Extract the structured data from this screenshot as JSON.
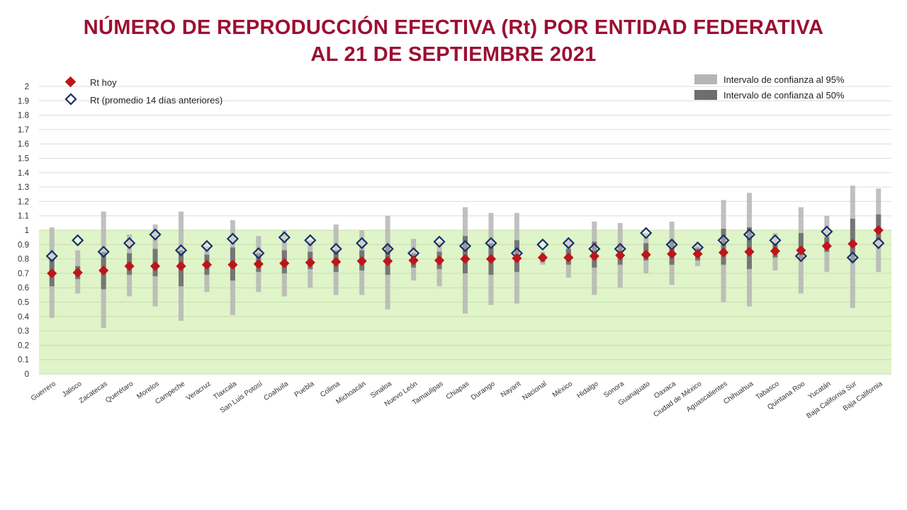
{
  "title": {
    "line1": "NÚMERO DE REPRODUCCIÓN EFECTIVA (Rt) POR ENTIDAD FEDERATIVA",
    "line2": "AL 21 DE SEPTIEMBRE 2021"
  },
  "legend": {
    "rt_today": "Rt hoy",
    "rt_avg": "Rt (promedio 14 días anteriores)",
    "ci95": "Intervalo de confianza al 95%",
    "ci50": "Intervalo de confianza al 50%"
  },
  "colors": {
    "title": "#9b1032",
    "rt_today": "#c0141b",
    "rt_avg_border": "#1a2f6b",
    "rt_avg_fill": "#ffffff",
    "ci95": "#b5b5b5",
    "ci50": "#6e6e6e",
    "band": "#dff4c8"
  },
  "chart_data": {
    "type": "scatter",
    "ylim": [
      0,
      2
    ],
    "yticks": [
      "0",
      "0.1",
      "0.2",
      "0.3",
      "0.4",
      "0.5",
      "0.6",
      "0.7",
      "0.8",
      "0.9",
      "1",
      "1.1",
      "1.2",
      "1.3",
      "1.4",
      "1.5",
      "1.6",
      "1.7",
      "1.8",
      "1.9",
      "2"
    ],
    "shaded_region": [
      0,
      1
    ],
    "grid": true,
    "legend_position": "top-left and top-right",
    "categories": [
      "Guerrero",
      "Jalisco",
      "Zacatecas",
      "Querétaro",
      "Morelos",
      "Campeche",
      "Veracruz",
      "Tlaxcala",
      "San Luis Potosí",
      "Coahuila",
      "Puebla",
      "Colima",
      "Michoacán",
      "Sinaloa",
      "Nuevo León",
      "Tamaulipas",
      "Chiapas",
      "Durango",
      "Nayarit",
      "Nacional",
      "México",
      "Hidalgo",
      "Sonora",
      "Guanajuato",
      "Oaxaca",
      "Ciudad de México",
      "Aguascalientes",
      "Chihuahua",
      "Tabasco",
      "Quintana Roo",
      "Yucatán",
      "Baja California Sur",
      "Baja California"
    ],
    "series": [
      {
        "name": "Rt hoy",
        "values": [
          0.7,
          0.705,
          0.72,
          0.75,
          0.75,
          0.75,
          0.76,
          0.76,
          0.765,
          0.77,
          0.775,
          0.78,
          0.785,
          0.785,
          0.79,
          0.79,
          0.8,
          0.8,
          0.805,
          0.81,
          0.81,
          0.82,
          0.825,
          0.83,
          0.835,
          0.835,
          0.845,
          0.85,
          0.855,
          0.86,
          0.89,
          0.905,
          1.0
        ]
      },
      {
        "name": "Rt (promedio 14 días anteriores)",
        "values": [
          0.82,
          0.93,
          0.85,
          0.91,
          0.97,
          0.86,
          0.89,
          0.94,
          0.84,
          0.95,
          0.93,
          0.87,
          0.91,
          0.87,
          0.84,
          0.92,
          0.89,
          0.91,
          0.84,
          0.9,
          0.91,
          0.87,
          0.87,
          0.98,
          0.9,
          0.88,
          0.93,
          0.97,
          0.93,
          0.82,
          0.99,
          0.81,
          0.91
        ]
      },
      {
        "name": "Intervalo de confianza al 95%",
        "ranges": [
          [
            0.39,
            1.02
          ],
          [
            0.56,
            0.86
          ],
          [
            0.32,
            1.13
          ],
          [
            0.54,
            0.97
          ],
          [
            0.47,
            1.04
          ],
          [
            0.37,
            1.13
          ],
          [
            0.57,
            0.89
          ],
          [
            0.41,
            1.07
          ],
          [
            0.57,
            0.96
          ],
          [
            0.54,
            1.0
          ],
          [
            0.6,
            0.93
          ],
          [
            0.55,
            1.04
          ],
          [
            0.55,
            1.0
          ],
          [
            0.45,
            1.1
          ],
          [
            0.65,
            0.94
          ],
          [
            0.61,
            0.92
          ],
          [
            0.42,
            1.16
          ],
          [
            0.48,
            1.12
          ],
          [
            0.49,
            1.12
          ],
          [
            0.76,
            0.85
          ],
          [
            0.67,
            0.93
          ],
          [
            0.55,
            1.06
          ],
          [
            0.6,
            1.05
          ],
          [
            0.7,
            0.98
          ],
          [
            0.62,
            1.06
          ],
          [
            0.75,
            0.9
          ],
          [
            0.5,
            1.21
          ],
          [
            0.47,
            1.26
          ],
          [
            0.72,
            0.98
          ],
          [
            0.56,
            1.16
          ],
          [
            0.71,
            1.1
          ],
          [
            0.46,
            1.31
          ],
          [
            0.71,
            1.29
          ]
        ]
      },
      {
        "name": "Intervalo de confianza al 50%",
        "ranges": [
          [
            0.61,
            0.8
          ],
          [
            0.66,
            0.75
          ],
          [
            0.59,
            0.85
          ],
          [
            0.69,
            0.84
          ],
          [
            0.68,
            0.87
          ],
          [
            0.61,
            0.86
          ],
          [
            0.69,
            0.83
          ],
          [
            0.65,
            0.88
          ],
          [
            0.71,
            0.84
          ],
          [
            0.7,
            0.86
          ],
          [
            0.73,
            0.85
          ],
          [
            0.71,
            0.86
          ],
          [
            0.72,
            0.86
          ],
          [
            0.69,
            0.9
          ],
          [
            0.74,
            0.84
          ],
          [
            0.73,
            0.85
          ],
          [
            0.7,
            0.96
          ],
          [
            0.69,
            0.91
          ],
          [
            0.71,
            0.93
          ],
          [
            0.78,
            0.83
          ],
          [
            0.76,
            0.87
          ],
          [
            0.74,
            0.92
          ],
          [
            0.76,
            0.9
          ],
          [
            0.79,
            0.91
          ],
          [
            0.76,
            0.93
          ],
          [
            0.79,
            0.88
          ],
          [
            0.76,
            1.01
          ],
          [
            0.73,
            1.02
          ],
          [
            0.81,
            0.91
          ],
          [
            0.8,
            0.98
          ],
          [
            0.85,
            0.95
          ],
          [
            0.78,
            1.08
          ],
          [
            0.93,
            1.11
          ]
        ]
      }
    ]
  }
}
